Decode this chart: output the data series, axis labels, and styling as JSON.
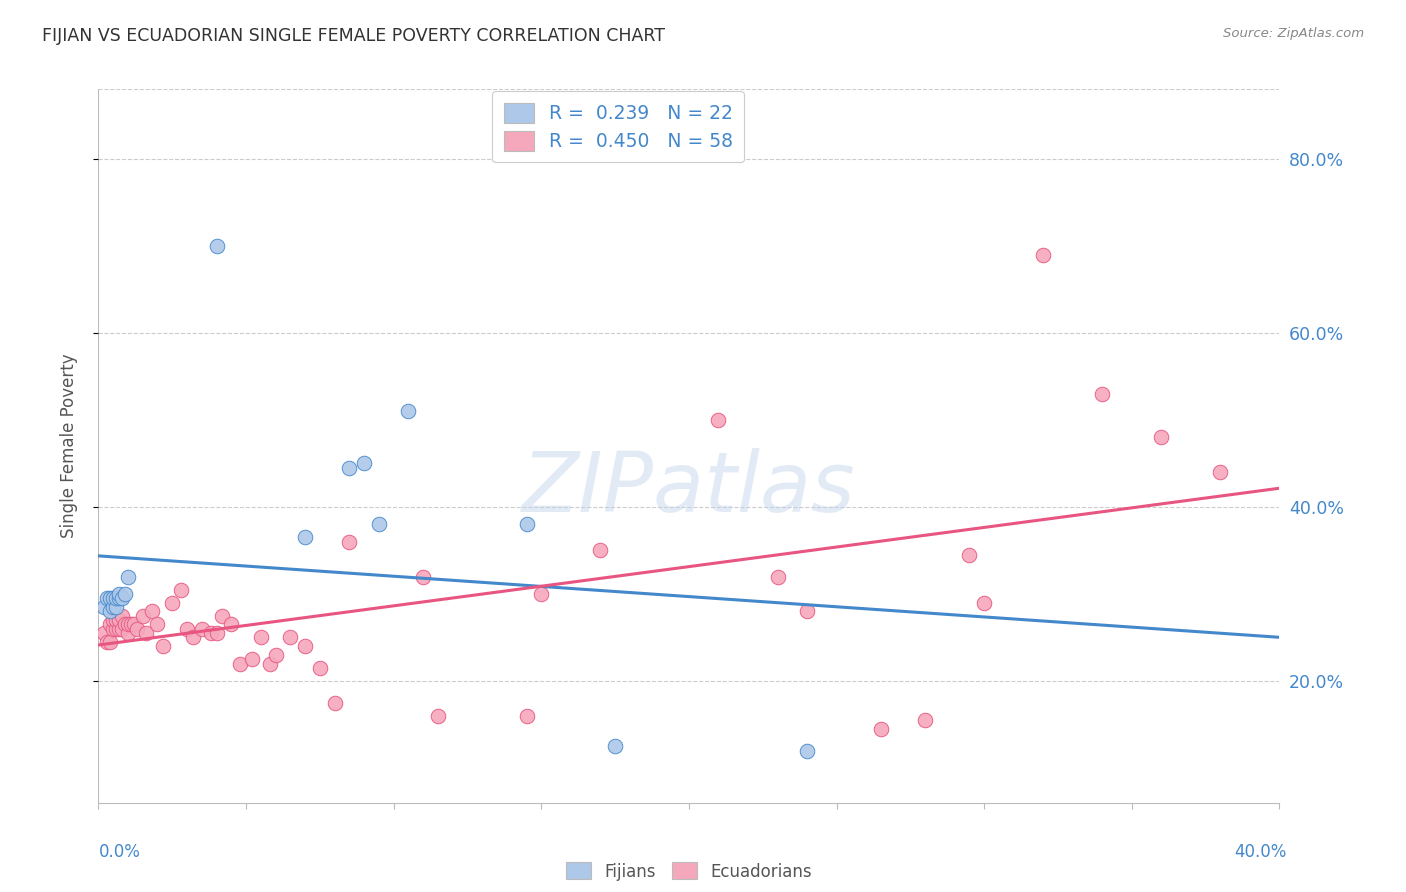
{
  "title": "FIJIAN VS ECUADORIAN SINGLE FEMALE POVERTY CORRELATION CHART",
  "source": "Source: ZipAtlas.com",
  "ylabel": "Single Female Poverty",
  "ylabel_right_ticks": [
    "20.0%",
    "40.0%",
    "60.0%",
    "80.0%"
  ],
  "ylabel_right_vals": [
    0.2,
    0.4,
    0.6,
    0.8
  ],
  "xlim": [
    0.0,
    0.4
  ],
  "ylim": [
    0.06,
    0.88
  ],
  "fijian_color": "#adc8e8",
  "ecuadorian_color": "#f5a8bc",
  "fijian_line_color": "#4488cc",
  "ecuadorian_line_color": "#e85580",
  "fijian_R": 0.239,
  "fijian_N": 22,
  "ecuadorian_R": 0.45,
  "ecuadorian_N": 58,
  "watermark": "ZIPatlas",
  "fijian_x": [
    0.002,
    0.003,
    0.004,
    0.004,
    0.005,
    0.005,
    0.006,
    0.006,
    0.007,
    0.007,
    0.008,
    0.009,
    0.01,
    0.04,
    0.07,
    0.085,
    0.09,
    0.095,
    0.105,
    0.145,
    0.175,
    0.24
  ],
  "fijian_y": [
    0.285,
    0.295,
    0.28,
    0.295,
    0.285,
    0.295,
    0.285,
    0.295,
    0.295,
    0.3,
    0.295,
    0.3,
    0.32,
    0.7,
    0.365,
    0.445,
    0.45,
    0.38,
    0.51,
    0.38,
    0.125,
    0.12
  ],
  "ecuadorian_x": [
    0.002,
    0.003,
    0.004,
    0.004,
    0.005,
    0.005,
    0.006,
    0.006,
    0.007,
    0.007,
    0.008,
    0.008,
    0.009,
    0.01,
    0.01,
    0.011,
    0.012,
    0.013,
    0.015,
    0.016,
    0.018,
    0.02,
    0.022,
    0.025,
    0.028,
    0.03,
    0.032,
    0.035,
    0.038,
    0.04,
    0.042,
    0.045,
    0.048,
    0.052,
    0.055,
    0.058,
    0.06,
    0.065,
    0.07,
    0.075,
    0.08,
    0.085,
    0.11,
    0.115,
    0.145,
    0.15,
    0.17,
    0.21,
    0.23,
    0.24,
    0.265,
    0.28,
    0.295,
    0.3,
    0.32,
    0.34,
    0.36,
    0.38
  ],
  "ecuadorian_y": [
    0.255,
    0.245,
    0.245,
    0.265,
    0.26,
    0.27,
    0.26,
    0.27,
    0.26,
    0.27,
    0.26,
    0.275,
    0.265,
    0.255,
    0.265,
    0.265,
    0.265,
    0.26,
    0.275,
    0.255,
    0.28,
    0.265,
    0.24,
    0.29,
    0.305,
    0.26,
    0.25,
    0.26,
    0.255,
    0.255,
    0.275,
    0.265,
    0.22,
    0.225,
    0.25,
    0.22,
    0.23,
    0.25,
    0.24,
    0.215,
    0.175,
    0.36,
    0.32,
    0.16,
    0.16,
    0.3,
    0.35,
    0.5,
    0.32,
    0.28,
    0.145,
    0.155,
    0.345,
    0.29,
    0.69,
    0.53,
    0.48,
    0.44
  ]
}
